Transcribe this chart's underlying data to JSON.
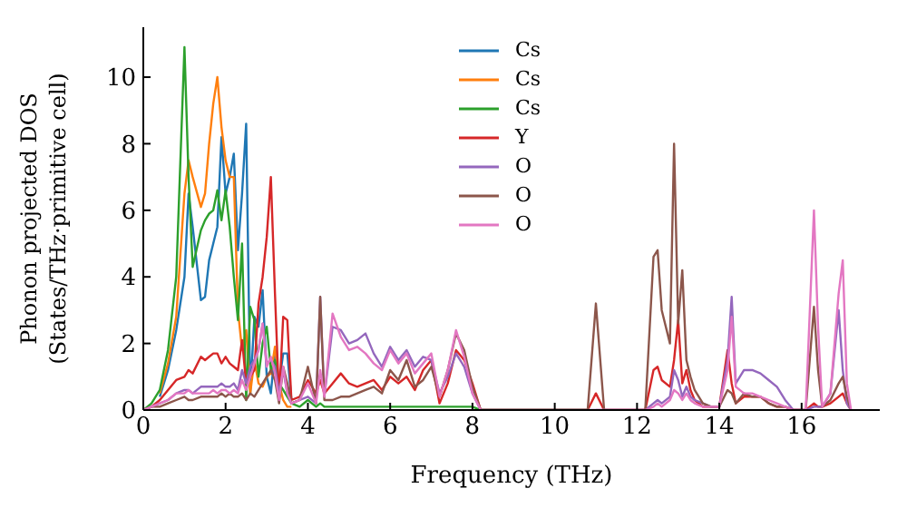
{
  "chart_data": {
    "type": "line",
    "xlabel": "Frequency (THz)",
    "ylabel": "Phonon projected DOS\n(States/THz·primitive cell)",
    "x": [
      0,
      0.2,
      0.4,
      0.6,
      0.8,
      1.0,
      1.1,
      1.2,
      1.4,
      1.5,
      1.6,
      1.7,
      1.8,
      1.9,
      2.0,
      2.1,
      2.2,
      2.3,
      2.4,
      2.5,
      2.6,
      2.7,
      2.8,
      2.9,
      3.0,
      3.1,
      3.2,
      3.3,
      3.4,
      3.5,
      3.6,
      3.8,
      4.0,
      4.2,
      4.3,
      4.4,
      4.6,
      4.8,
      5.0,
      5.2,
      5.4,
      5.6,
      5.8,
      6.0,
      6.2,
      6.4,
      6.6,
      6.8,
      7.0,
      7.2,
      7.4,
      7.6,
      7.8,
      8.0,
      8.2,
      10.8,
      11.0,
      11.2,
      12.2,
      12.4,
      12.5,
      12.6,
      12.8,
      12.9,
      13.0,
      13.1,
      13.2,
      13.3,
      13.4,
      13.6,
      13.8,
      14.0,
      14.2,
      14.3,
      14.4,
      14.6,
      14.8,
      15.0,
      15.2,
      15.4,
      15.6,
      15.8,
      16.1,
      16.3,
      16.4,
      16.5,
      16.7,
      16.9,
      17.0,
      17.1,
      17.2
    ],
    "series": [
      {
        "name": "Cs",
        "color": "#1f77b4",
        "values": [
          null,
          null,
          0.4,
          1.2,
          2.4,
          4.0,
          6.5,
          5.5,
          3.3,
          3.4,
          4.5,
          5.0,
          5.5,
          8.2,
          6.5,
          7.0,
          7.7,
          4.8,
          6.5,
          8.6,
          0.5,
          2.8,
          2.5,
          3.6,
          1.0,
          0.5,
          1.8,
          0.8,
          1.7,
          1.7,
          0.3,
          null,
          null,
          null,
          null,
          null,
          null,
          null,
          null,
          null,
          null,
          null,
          null,
          null,
          null,
          null,
          null,
          null,
          null,
          null,
          null,
          null,
          null,
          null,
          null,
          null,
          null,
          null,
          null,
          null,
          null,
          null,
          null,
          null,
          null,
          null,
          null,
          null,
          null,
          null,
          null,
          null,
          null,
          null,
          null,
          null,
          null,
          null,
          null,
          null,
          null,
          null,
          null,
          null,
          null,
          null,
          null,
          null,
          null,
          null,
          null
        ]
      },
      {
        "name": "Cs",
        "color": "#ff7f0e",
        "values": [
          null,
          null,
          0.5,
          1.4,
          2.8,
          6.5,
          7.5,
          7.0,
          6.1,
          6.5,
          8.0,
          9.2,
          10.0,
          8.5,
          7.5,
          7.0,
          7.0,
          3.0,
          1.8,
          2.4,
          0.5,
          1.5,
          0.8,
          0.7,
          1.0,
          1.1,
          1.9,
          0.8,
          0.3,
          0.1,
          0.1,
          null,
          null,
          null,
          null,
          null,
          null,
          null,
          null,
          null,
          null,
          null,
          null,
          null,
          null,
          null,
          null,
          null,
          null,
          null,
          null,
          null,
          null,
          null,
          null,
          null,
          null,
          null,
          null,
          null,
          null,
          null,
          null,
          null,
          null,
          null,
          null,
          null,
          null,
          null,
          null,
          null,
          null,
          null,
          null,
          null,
          null,
          null,
          null,
          null,
          null,
          null,
          null,
          null,
          null,
          null,
          null,
          null,
          null,
          null,
          null
        ]
      },
      {
        "name": "Cs",
        "color": "#2ca02c",
        "values": [
          0,
          0.2,
          0.6,
          1.8,
          4.0,
          10.9,
          7.0,
          4.3,
          5.4,
          5.7,
          5.9,
          6.0,
          6.6,
          5.7,
          6.6,
          5.5,
          4.0,
          2.7,
          5.0,
          0.3,
          3.1,
          2.7,
          1.0,
          2.0,
          2.5,
          1.2,
          1.5,
          0.8,
          0.6,
          0.4,
          0.2,
          0.1,
          0.3,
          0.1,
          0.2,
          0.1,
          0.1,
          0.1,
          0.1,
          0.1,
          0.1,
          0.1,
          0.1,
          0.1,
          0.1,
          0.1,
          0.1,
          0.1,
          0.1,
          0.1,
          0.1,
          0.1,
          0.1,
          0.1,
          0,
          0,
          null,
          null,
          null,
          null,
          null,
          null,
          null,
          null,
          null,
          null,
          null,
          null,
          null,
          null,
          null,
          null,
          null,
          null,
          null,
          null,
          null,
          null,
          null,
          null,
          null,
          null,
          null,
          null,
          null,
          null,
          null,
          null,
          null,
          null,
          null
        ]
      },
      {
        "name": "Y",
        "color": "#d62728",
        "values": [
          0,
          0.1,
          0.3,
          0.6,
          0.9,
          1.0,
          1.2,
          1.1,
          1.6,
          1.5,
          1.6,
          1.7,
          1.7,
          1.4,
          1.6,
          1.4,
          1.3,
          1.2,
          2.1,
          0.8,
          1.0,
          1.2,
          3.2,
          4.0,
          5.2,
          7.0,
          3.5,
          0.3,
          2.8,
          2.7,
          0.3,
          0.4,
          0.9,
          0.5,
          0.9,
          0.5,
          0.8,
          1.1,
          0.8,
          0.7,
          0.8,
          0.9,
          0.6,
          1.0,
          0.8,
          1.0,
          0.6,
          1.2,
          1.5,
          0.2,
          0.8,
          1.8,
          1.5,
          0.8,
          0,
          0,
          0.5,
          0,
          0,
          1.2,
          1.3,
          0.9,
          0.7,
          1.5,
          2.7,
          0.8,
          1.2,
          0.6,
          0.3,
          0.1,
          0.1,
          0.1,
          1.8,
          0.8,
          0.2,
          0.4,
          0.4,
          0.4,
          0.2,
          0.1,
          0.1,
          0,
          0,
          0.2,
          0.1,
          0.1,
          0.2,
          0.4,
          0.5,
          0.2,
          0
        ]
      },
      {
        "name": "O",
        "color": "#9467bd",
        "values": [
          0,
          0.1,
          0.2,
          0.3,
          0.5,
          0.6,
          0.6,
          0.5,
          0.7,
          0.7,
          0.7,
          0.7,
          0.7,
          0.8,
          0.7,
          0.7,
          0.8,
          0.6,
          1.2,
          0.8,
          1.3,
          1.5,
          1.8,
          2.6,
          1.4,
          1.5,
          1.3,
          0.5,
          1.2,
          0.5,
          0.2,
          0.3,
          0.4,
          0.2,
          3.4,
          0.4,
          2.5,
          2.4,
          2.0,
          2.1,
          2.3,
          1.7,
          1.3,
          1.9,
          1.5,
          1.8,
          1.3,
          1.6,
          1.5,
          0.5,
          1.0,
          1.7,
          1.3,
          0.5,
          0,
          0,
          0,
          0,
          0,
          0.2,
          0.3,
          0.2,
          0.4,
          1.2,
          0.9,
          0.4,
          0.7,
          0.4,
          0.3,
          0.2,
          0.1,
          0.1,
          1.5,
          3.4,
          0.8,
          1.2,
          1.2,
          1.1,
          0.9,
          0.7,
          0.3,
          0,
          0,
          0.1,
          0.1,
          0.1,
          0.5,
          3.0,
          1.2,
          0.2,
          0
        ]
      },
      {
        "name": "O",
        "color": "#8c564b",
        "values": [
          0,
          0.1,
          0.1,
          0.2,
          0.3,
          0.4,
          0.3,
          0.3,
          0.4,
          0.4,
          0.4,
          0.4,
          0.4,
          0.5,
          0.4,
          0.5,
          0.4,
          0.4,
          0.5,
          0.3,
          0.5,
          0.4,
          0.6,
          0.8,
          1.0,
          1.2,
          0.9,
          0.2,
          1.3,
          0.8,
          0.2,
          0.3,
          1.3,
          0.2,
          3.4,
          0.3,
          0.3,
          0.4,
          0.4,
          0.5,
          0.6,
          0.7,
          0.5,
          1.2,
          0.9,
          1.5,
          0.7,
          0.9,
          1.3,
          0.4,
          1.2,
          2.3,
          1.8,
          0.7,
          0,
          0,
          3.2,
          0,
          0,
          4.6,
          4.8,
          3.0,
          2.0,
          8.0,
          2.6,
          4.2,
          1.5,
          1.0,
          0.6,
          0.2,
          0.1,
          0.1,
          0.6,
          0.5,
          0.2,
          0.5,
          0.4,
          0.4,
          0.2,
          0.1,
          0.1,
          0,
          0,
          3.1,
          1.2,
          0.1,
          0.3,
          0.8,
          1.0,
          0.4,
          0
        ]
      },
      {
        "name": "O",
        "color": "#e377c2",
        "values": [
          0,
          0.1,
          0.2,
          0.3,
          0.5,
          0.5,
          0.6,
          0.5,
          0.5,
          0.5,
          0.5,
          0.6,
          0.5,
          0.6,
          0.6,
          0.5,
          0.6,
          0.5,
          0.9,
          0.6,
          1.0,
          1.4,
          1.8,
          2.6,
          1.3,
          1.6,
          1.1,
          0.3,
          1.3,
          0.5,
          0.2,
          0.3,
          0.8,
          0.2,
          1.2,
          0.4,
          2.9,
          2.2,
          1.8,
          1.9,
          1.7,
          1.4,
          1.2,
          1.8,
          1.4,
          1.7,
          1.1,
          1.4,
          1.7,
          0.4,
          1.2,
          2.4,
          1.6,
          0.5,
          0,
          null,
          0,
          0,
          0,
          0.1,
          0.2,
          0.1,
          0.3,
          0.6,
          0.5,
          0.3,
          0.5,
          0.3,
          0.2,
          0.1,
          0.1,
          0.1,
          1.2,
          2.8,
          0.7,
          0.5,
          0.5,
          0.4,
          0.3,
          0.2,
          0.1,
          0,
          0,
          6.0,
          2.5,
          0.1,
          0.5,
          3.5,
          4.5,
          0.8,
          0
        ]
      }
    ],
    "xlim": [
      0,
      17.9
    ],
    "xticks": [
      0,
      2,
      4,
      6,
      8,
      10,
      12,
      14,
      16
    ],
    "ylim": [
      0,
      11.5
    ],
    "yticks": [
      0,
      2,
      4,
      6,
      8,
      10
    ],
    "legend": "top"
  }
}
